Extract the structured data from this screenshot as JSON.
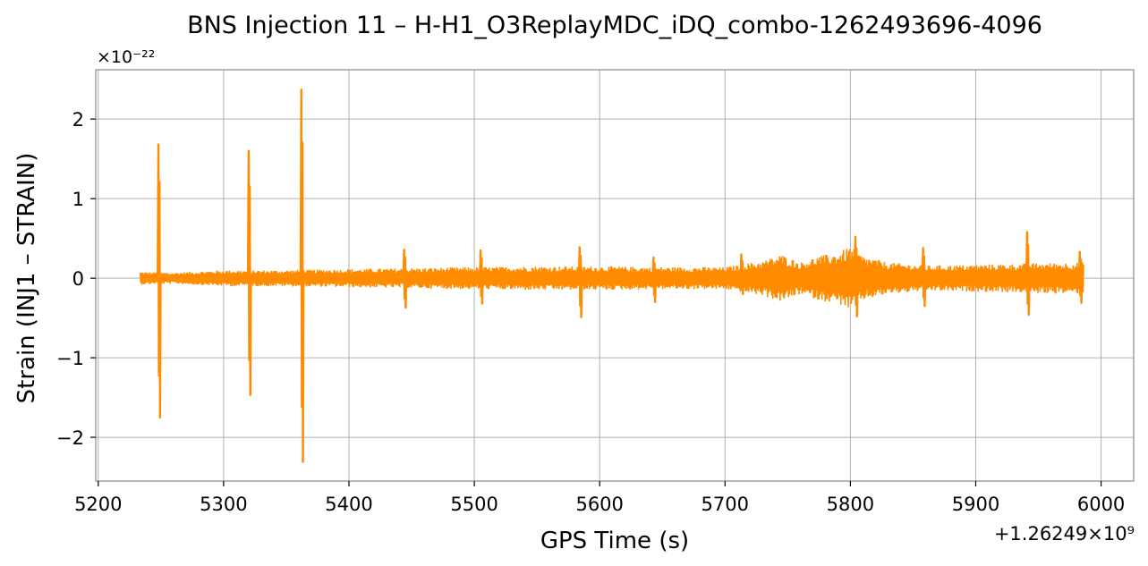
{
  "chart_data": {
    "type": "line",
    "title": "BNS Injection 11 – H-H1_O3ReplayMDC_iDQ_combo-1262493696-4096",
    "xlabel": "GPS Time (s)",
    "ylabel": "Strain (INJ1 – STRAIN)",
    "y_multiplier_label": "×10⁻²²",
    "x_offset_label": "+1.26249×10⁹",
    "x_offset": 1262490000,
    "y_scale": 1e-22,
    "xlim": [
      5198,
      6026
    ],
    "ylim": [
      -2.55,
      2.62
    ],
    "xticks": [
      5200,
      5300,
      5400,
      5500,
      5600,
      5700,
      5800,
      5900,
      6000
    ],
    "xtick_labels": [
      "5200",
      "5300",
      "5400",
      "5500",
      "5600",
      "5700",
      "5800",
      "5900",
      "6000"
    ],
    "yticks": [
      -2,
      -1,
      0,
      1,
      2
    ],
    "ytick_labels": [
      "−2",
      "−1",
      "0",
      "1",
      "2"
    ],
    "grid": true,
    "series": [
      {
        "color": "#ff8c00",
        "x_range": [
          5233.5,
          5986
        ],
        "noise_envelope": [
          [
            5234,
            0.08
          ],
          [
            5260,
            0.07
          ],
          [
            5300,
            0.1
          ],
          [
            5340,
            0.1
          ],
          [
            5380,
            0.11
          ],
          [
            5420,
            0.12
          ],
          [
            5460,
            0.13
          ],
          [
            5500,
            0.14
          ],
          [
            5550,
            0.15
          ],
          [
            5600,
            0.15
          ],
          [
            5650,
            0.14
          ],
          [
            5700,
            0.14
          ],
          [
            5715,
            0.18
          ],
          [
            5730,
            0.22
          ],
          [
            5745,
            0.3
          ],
          [
            5760,
            0.2
          ],
          [
            5775,
            0.28
          ],
          [
            5790,
            0.32
          ],
          [
            5800,
            0.4
          ],
          [
            5810,
            0.28
          ],
          [
            5830,
            0.2
          ],
          [
            5860,
            0.16
          ],
          [
            5900,
            0.17
          ],
          [
            5950,
            0.19
          ],
          [
            5986,
            0.2
          ]
        ],
        "spikes": [
          {
            "x": 5248,
            "max": 1.68,
            "min": -1.75
          },
          {
            "x": 5320,
            "max": 1.6,
            "min": -1.47
          },
          {
            "x": 5362,
            "max": 2.37,
            "min": -2.31
          },
          {
            "x": 5444,
            "max": 0.36,
            "min": -0.37
          },
          {
            "x": 5505,
            "max": 0.35,
            "min": -0.32
          },
          {
            "x": 5584,
            "max": 0.39,
            "min": -0.49
          },
          {
            "x": 5643,
            "max": 0.26,
            "min": -0.3
          },
          {
            "x": 5713,
            "max": 0.3,
            "min": -0.2
          },
          {
            "x": 5804,
            "max": 0.52,
            "min": -0.48
          },
          {
            "x": 5858,
            "max": 0.38,
            "min": -0.35
          },
          {
            "x": 5941,
            "max": 0.58,
            "min": -0.46
          },
          {
            "x": 5983,
            "max": 0.33,
            "min": -0.31
          }
        ]
      }
    ]
  }
}
